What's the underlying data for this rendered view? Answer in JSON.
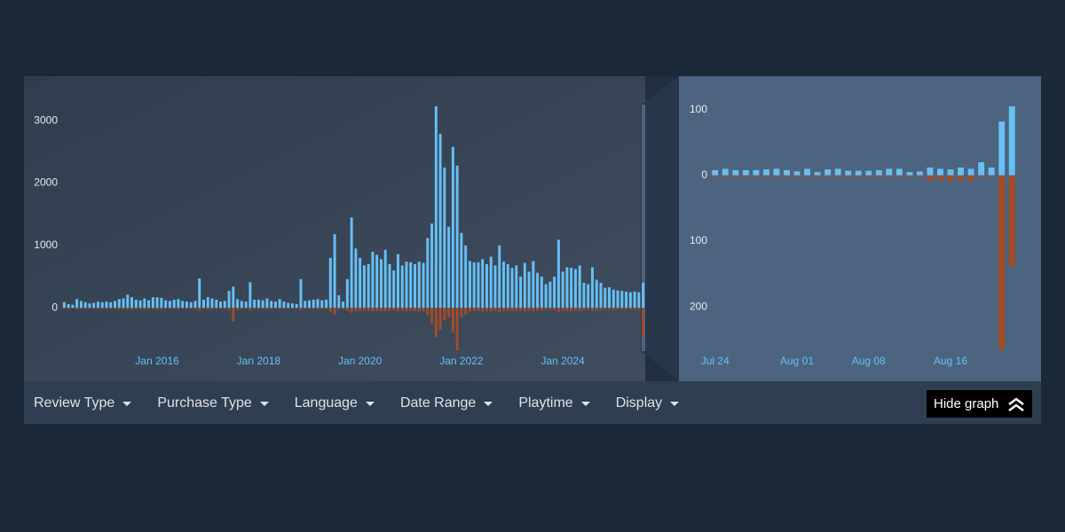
{
  "chart_data": [
    {
      "type": "bar",
      "categories": [
        null,
        null,
        null,
        null,
        null,
        null,
        null,
        null,
        null,
        null,
        null,
        null,
        null,
        null,
        null,
        null,
        null,
        null,
        null,
        null,
        null,
        null,
        "Jan 2016",
        null,
        null,
        null,
        null,
        null,
        null,
        null,
        null,
        null,
        null,
        null,
        null,
        null,
        null,
        null,
        null,
        null,
        null,
        null,
        null,
        null,
        null,
        null,
        "Jan 2018",
        null,
        null,
        null,
        null,
        null,
        null,
        null,
        null,
        null,
        null,
        null,
        null,
        null,
        null,
        null,
        null,
        null,
        null,
        null,
        null,
        null,
        null,
        null,
        "Jan 2020",
        null,
        null,
        null,
        null,
        null,
        null,
        null,
        null,
        null,
        null,
        null,
        null,
        null,
        null,
        null,
        null,
        null,
        null,
        null,
        null,
        null,
        null,
        null,
        "Jan 2022",
        null,
        null,
        null,
        null,
        null,
        null,
        null,
        null,
        null,
        null,
        null,
        null,
        null,
        null,
        null,
        null,
        null,
        null,
        null,
        null,
        null,
        null,
        null,
        "Jan 2024",
        null,
        null,
        null,
        null,
        null,
        null,
        null,
        null,
        null,
        null,
        null,
        null,
        null,
        null,
        null,
        null,
        null,
        null,
        null
      ],
      "series": [
        {
          "color": "#66c0f4",
          "values": [
            90,
            60,
            50,
            140,
            110,
            90,
            70,
            80,
            100,
            90,
            100,
            90,
            110,
            140,
            150,
            210,
            170,
            130,
            120,
            150,
            120,
            170,
            170,
            160,
            120,
            110,
            130,
            140,
            110,
            100,
            90,
            110,
            470,
            130,
            170,
            150,
            130,
            100,
            110,
            270,
            340,
            140,
            110,
            100,
            410,
            130,
            130,
            120,
            150,
            110,
            100,
            140,
            100,
            80,
            70,
            60,
            460,
            110,
            120,
            130,
            140,
            120,
            130,
            800,
            1180,
            200,
            100,
            460,
            1450,
            950,
            800,
            680,
            700,
            900,
            850,
            780,
            930,
            700,
            600,
            860,
            680,
            740,
            730,
            700,
            740,
            720,
            1120,
            1350,
            3230,
            2790,
            2250,
            1300,
            2580,
            2280,
            1200,
            1000,
            750,
            730,
            730,
            780,
            700,
            820,
            680,
            1000,
            740,
            700,
            640,
            680,
            500,
            720,
            580,
            750,
            560,
            500,
            380,
            420,
            500,
            1090,
            580,
            650,
            640,
            620,
            680,
            400,
            380,
            650,
            450,
            400,
            320,
            330,
            290,
            280,
            270,
            260,
            250,
            260,
            250,
            400
          ]
        },
        {
          "color": "#a34c25",
          "values": [
            -20,
            -15,
            -10,
            -25,
            -20,
            -15,
            -15,
            -15,
            -20,
            -20,
            -20,
            -20,
            -20,
            -25,
            -25,
            -35,
            -30,
            -20,
            -20,
            -30,
            -20,
            -25,
            -25,
            -25,
            -20,
            -20,
            -20,
            -25,
            -20,
            -15,
            -15,
            -20,
            -40,
            -20,
            -25,
            -20,
            -20,
            -15,
            -20,
            -40,
            -220,
            -30,
            -20,
            -15,
            -40,
            -20,
            -20,
            -20,
            -25,
            -20,
            -15,
            -20,
            -15,
            -15,
            -10,
            -10,
            -40,
            -20,
            -20,
            -20,
            -25,
            -20,
            -20,
            -60,
            -100,
            -30,
            -20,
            -50,
            -80,
            -60,
            -50,
            -45,
            -50,
            -55,
            -50,
            -50,
            -55,
            -45,
            -40,
            -55,
            -45,
            -50,
            -50,
            -50,
            -60,
            -60,
            -120,
            -250,
            -470,
            -350,
            -200,
            -150,
            -400,
            -680,
            -150,
            -100,
            -60,
            -55,
            -55,
            -60,
            -55,
            -60,
            -50,
            -70,
            -55,
            -50,
            -50,
            -50,
            -45,
            -55,
            -45,
            -55,
            -45,
            -40,
            -35,
            -35,
            -40,
            -60,
            -45,
            -50,
            -50,
            -45,
            -50,
            -35,
            -35,
            -50,
            -40,
            -35,
            -30,
            -30,
            -30,
            -30,
            -25,
            -25,
            -25,
            -30,
            -30,
            -450
          ]
        }
      ],
      "ylim": [
        -680,
        3300
      ],
      "yticks": [
        0,
        1000,
        2000,
        3000
      ],
      "grid": false
    },
    {
      "type": "bar",
      "categories": [
        "Jul 24",
        null,
        null,
        null,
        null,
        null,
        null,
        null,
        "Aug 01",
        null,
        null,
        null,
        null,
        null,
        null,
        "Aug 08",
        null,
        null,
        null,
        null,
        null,
        null,
        null,
        "Aug 16",
        null,
        null,
        null,
        null,
        null,
        null
      ],
      "series": [
        {
          "color": "#66c0f4",
          "values": [
            8,
            10,
            8,
            8,
            8,
            9,
            10,
            8,
            6,
            10,
            5,
            9,
            10,
            7,
            7,
            7,
            8,
            10,
            10,
            5,
            6,
            12,
            10,
            9,
            12,
            10,
            20,
            12,
            82,
            105
          ]
        },
        {
          "color": "#a34c25",
          "values": [
            -2,
            -2,
            -2,
            -2,
            -2,
            -2,
            -2,
            -2,
            -2,
            -2,
            -2,
            -2,
            -2,
            -2,
            -2,
            -2,
            -2,
            -2,
            -2,
            -2,
            -2,
            -8,
            -8,
            -8,
            -8,
            -8,
            -2,
            -2,
            -265,
            -138
          ]
        }
      ],
      "ylim": [
        -270,
        140
      ],
      "yticks": [
        {
          "value": -200,
          "label": "200"
        },
        {
          "value": -100,
          "label": "100"
        },
        0,
        100
      ],
      "grid": false
    }
  ],
  "filters": [
    "Review Type",
    "Purchase Type",
    "Language",
    "Date Range",
    "Playtime",
    "Display"
  ],
  "hide_graph_button": "Hide graph"
}
